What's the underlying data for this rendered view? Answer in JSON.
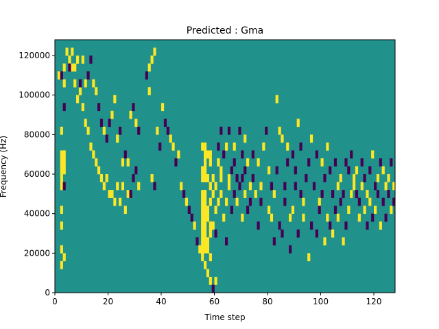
{
  "chart_data": {
    "type": "heatmap",
    "title": "Predicted : Gma",
    "xlabel": "Time step",
    "ylabel": "Frequency (Hz)",
    "xlim": [
      0,
      128
    ],
    "ylim": [
      0,
      128000
    ],
    "x_ticks": [
      0,
      20,
      40,
      60,
      80,
      100,
      120
    ],
    "y_ticks": [
      0,
      20000,
      40000,
      60000,
      80000,
      100000,
      120000
    ],
    "x_tick_labels": [
      "0",
      "20",
      "40",
      "60",
      "80",
      "100",
      "120"
    ],
    "y_tick_labels": [
      "0",
      "20000",
      "40000",
      "60000",
      "80000",
      "100000",
      "120000"
    ],
    "grid": false,
    "rows": 32,
    "cols": 128,
    "row_height_hz": 4000,
    "values_legend": {
      "low": -1,
      "mid": 0,
      "high": 1
    },
    "colors": {
      "low": "#440154",
      "mid": "#21918c",
      "high": "#fde725"
    },
    "cells": [
      [
        2,
        3,
        1
      ],
      [
        2,
        5,
        1
      ],
      [
        2,
        8,
        1
      ],
      [
        2,
        10,
        1
      ],
      [
        2,
        13,
        1
      ],
      [
        2,
        14,
        1
      ],
      [
        3,
        4,
        1
      ],
      [
        3,
        13,
        -1
      ],
      [
        3,
        15,
        1
      ],
      [
        2,
        15,
        1
      ],
      [
        3,
        16,
        1
      ],
      [
        2,
        16,
        1
      ],
      [
        2,
        17,
        1
      ],
      [
        3,
        17,
        1
      ],
      [
        2,
        20,
        1
      ],
      [
        3,
        23,
        -1
      ],
      [
        3,
        26,
        1
      ],
      [
        1,
        27,
        1
      ],
      [
        2,
        27,
        -1
      ],
      [
        3,
        28,
        1
      ],
      [
        4,
        30,
        1
      ],
      [
        5,
        29,
        1
      ],
      [
        6,
        28,
        1
      ],
      [
        7,
        26,
        1
      ],
      [
        8,
        24,
        1
      ],
      [
        9,
        25,
        1
      ],
      [
        10,
        23,
        1
      ],
      [
        11,
        21,
        1
      ],
      [
        12,
        20,
        1
      ],
      [
        13,
        18,
        1
      ],
      [
        14,
        17,
        1
      ],
      [
        15,
        16,
        1
      ],
      [
        16,
        15,
        1
      ],
      [
        17,
        14,
        1
      ],
      [
        18,
        13,
        1
      ],
      [
        19,
        14,
        1
      ],
      [
        20,
        12,
        1
      ],
      [
        21,
        12,
        1
      ],
      [
        22,
        11,
        1
      ],
      [
        23,
        13,
        1
      ],
      [
        24,
        11,
        1
      ],
      [
        25,
        13,
        1
      ],
      [
        26,
        10,
        1
      ],
      [
        27,
        12,
        1
      ],
      [
        28,
        12,
        -1
      ],
      [
        29,
        14,
        -1
      ],
      [
        30,
        15,
        -1
      ],
      [
        31,
        13,
        1
      ],
      [
        5,
        28,
        -1
      ],
      [
        6,
        30,
        1
      ],
      [
        7,
        28,
        1
      ],
      [
        8,
        29,
        1
      ],
      [
        9,
        26,
        -1
      ],
      [
        10,
        29,
        1
      ],
      [
        11,
        26,
        1
      ],
      [
        12,
        27,
        -1
      ],
      [
        13,
        29,
        -1
      ],
      [
        14,
        26,
        1
      ],
      [
        15,
        25,
        1
      ],
      [
        16,
        23,
        -1
      ],
      [
        17,
        21,
        -1
      ],
      [
        18,
        20,
        1
      ],
      [
        19,
        19,
        -1
      ],
      [
        20,
        21,
        -1
      ],
      [
        21,
        22,
        1
      ],
      [
        22,
        24,
        1
      ],
      [
        23,
        19,
        1
      ],
      [
        24,
        20,
        -1
      ],
      [
        25,
        16,
        1
      ],
      [
        26,
        17,
        -1
      ],
      [
        27,
        16,
        1
      ],
      [
        28,
        22,
        1
      ],
      [
        29,
        23,
        -1
      ],
      [
        30,
        21,
        1
      ],
      [
        31,
        20,
        -1
      ],
      [
        37,
        13,
        -1
      ],
      [
        36,
        14,
        1
      ],
      [
        39,
        18,
        -1
      ],
      [
        38,
        20,
        1
      ],
      [
        35,
        25,
        1
      ],
      [
        34,
        27,
        -1
      ],
      [
        35,
        28,
        1
      ],
      [
        36,
        29,
        1
      ],
      [
        37,
        30,
        1
      ],
      [
        40,
        23,
        1
      ],
      [
        41,
        21,
        -1
      ],
      [
        42,
        20,
        -1
      ],
      [
        43,
        19,
        1
      ],
      [
        44,
        18,
        1
      ],
      [
        45,
        16,
        -1
      ],
      [
        46,
        17,
        1
      ],
      [
        47,
        13,
        1
      ],
      [
        48,
        12,
        -1
      ],
      [
        49,
        11,
        1
      ],
      [
        50,
        10,
        -1
      ],
      [
        51,
        9,
        -1
      ],
      [
        52,
        8,
        1
      ],
      [
        53,
        6,
        -1
      ],
      [
        54,
        5,
        1
      ],
      [
        55,
        4,
        1
      ],
      [
        56,
        3,
        1
      ],
      [
        57,
        2,
        1
      ],
      [
        58,
        1,
        1
      ],
      [
        59,
        0,
        -1
      ],
      [
        60,
        1,
        1
      ],
      [
        55,
        5,
        1
      ],
      [
        55,
        6,
        1
      ],
      [
        56,
        5,
        1
      ],
      [
        56,
        6,
        1
      ],
      [
        57,
        5,
        1
      ],
      [
        57,
        6,
        1
      ],
      [
        55,
        7,
        1
      ],
      [
        55,
        8,
        1
      ],
      [
        56,
        7,
        1
      ],
      [
        56,
        8,
        1
      ],
      [
        55,
        9,
        1
      ],
      [
        55,
        10,
        1
      ],
      [
        56,
        9,
        1
      ],
      [
        56,
        10,
        1
      ],
      [
        57,
        9,
        1
      ],
      [
        57,
        10,
        1
      ],
      [
        55,
        11,
        1
      ],
      [
        55,
        12,
        1
      ],
      [
        56,
        11,
        1
      ],
      [
        56,
        12,
        1
      ],
      [
        55,
        14,
        1
      ],
      [
        55,
        15,
        1
      ],
      [
        56,
        14,
        1
      ],
      [
        56,
        15,
        1
      ],
      [
        57,
        14,
        1
      ],
      [
        56,
        16,
        1
      ],
      [
        56,
        17,
        1
      ],
      [
        57,
        17,
        1
      ],
      [
        55,
        18,
        1
      ],
      [
        56,
        18,
        1
      ],
      [
        58,
        4,
        1
      ],
      [
        58,
        7,
        1
      ],
      [
        58,
        8,
        1
      ],
      [
        58,
        11,
        1
      ],
      [
        58,
        13,
        1
      ],
      [
        58,
        16,
        1
      ],
      [
        58,
        17,
        1
      ],
      [
        59,
        8,
        1
      ],
      [
        59,
        12,
        1
      ],
      [
        59,
        14,
        1
      ],
      [
        60,
        7,
        -1
      ],
      [
        60,
        10,
        1
      ],
      [
        60,
        13,
        1
      ],
      [
        61,
        11,
        1
      ],
      [
        61,
        16,
        1
      ],
      [
        61,
        18,
        -1
      ],
      [
        62,
        12,
        1
      ],
      [
        62,
        14,
        1
      ],
      [
        62,
        15,
        1
      ],
      [
        62,
        20,
        -1
      ],
      [
        63,
        9,
        1
      ],
      [
        63,
        17,
        -1
      ],
      [
        64,
        11,
        1
      ],
      [
        64,
        18,
        1
      ],
      [
        64,
        6,
        -1
      ],
      [
        65,
        13,
        1
      ],
      [
        65,
        14,
        1
      ],
      [
        65,
        20,
        -1
      ],
      [
        66,
        10,
        -1
      ],
      [
        66,
        15,
        -1
      ],
      [
        67,
        12,
        -1
      ],
      [
        67,
        16,
        -1
      ],
      [
        67,
        18,
        1
      ],
      [
        68,
        11,
        1
      ],
      [
        68,
        14,
        -1
      ],
      [
        69,
        13,
        -1
      ],
      [
        69,
        20,
        -1
      ],
      [
        70,
        9,
        1
      ],
      [
        70,
        14,
        -1
      ],
      [
        70,
        17,
        -1
      ],
      [
        71,
        12,
        1
      ],
      [
        71,
        15,
        -1
      ],
      [
        71,
        19,
        1
      ],
      [
        72,
        10,
        -1
      ],
      [
        72,
        16,
        1
      ],
      [
        73,
        11,
        -1
      ],
      [
        73,
        13,
        1
      ],
      [
        74,
        17,
        -1
      ],
      [
        74,
        14,
        -1
      ],
      [
        75,
        12,
        1
      ],
      [
        76,
        8,
        -1
      ],
      [
        76,
        16,
        1
      ],
      [
        77,
        11,
        -1
      ],
      [
        77,
        13,
        1
      ],
      [
        78,
        18,
        1
      ],
      [
        79,
        20,
        -1
      ],
      [
        80,
        10,
        1
      ],
      [
        80,
        15,
        1
      ],
      [
        81,
        9,
        1
      ],
      [
        81,
        13,
        -1
      ],
      [
        82,
        6,
        -1
      ],
      [
        82,
        12,
        1
      ],
      [
        83,
        15,
        -1
      ],
      [
        83,
        24,
        1
      ],
      [
        84,
        8,
        -1
      ],
      [
        84,
        20,
        1
      ],
      [
        85,
        7,
        -1
      ],
      [
        85,
        19,
        1
      ],
      [
        86,
        13,
        -1
      ],
      [
        86,
        11,
        -1
      ],
      [
        87,
        16,
        -1
      ],
      [
        87,
        18,
        1
      ],
      [
        88,
        9,
        1
      ],
      [
        88,
        5,
        -1
      ],
      [
        89,
        17,
        -1
      ],
      [
        89,
        10,
        1
      ],
      [
        90,
        13,
        -1
      ],
      [
        90,
        15,
        -1
      ],
      [
        91,
        7,
        -1
      ],
      [
        91,
        21,
        1
      ],
      [
        92,
        12,
        -1
      ],
      [
        92,
        18,
        -1
      ],
      [
        93,
        9,
        1
      ],
      [
        93,
        11,
        1
      ],
      [
        94,
        14,
        -1
      ],
      [
        95,
        4,
        1
      ],
      [
        95,
        16,
        -1
      ],
      [
        96,
        8,
        -1
      ],
      [
        96,
        19,
        1
      ],
      [
        97,
        13,
        -1
      ],
      [
        98,
        7,
        -1
      ],
      [
        98,
        17,
        -1
      ],
      [
        99,
        11,
        1
      ],
      [
        99,
        10,
        -1
      ],
      [
        100,
        12,
        -1
      ],
      [
        100,
        16,
        1
      ],
      [
        101,
        6,
        1
      ],
      [
        101,
        14,
        -1
      ],
      [
        102,
        9,
        1
      ],
      [
        102,
        18,
        1
      ],
      [
        103,
        8,
        -1
      ],
      [
        103,
        15,
        -1
      ],
      [
        104,
        7,
        1
      ],
      [
        104,
        12,
        -1
      ],
      [
        105,
        10,
        -1
      ],
      [
        105,
        16,
        -1
      ],
      [
        106,
        9,
        1
      ],
      [
        106,
        13,
        1
      ],
      [
        107,
        11,
        -1
      ],
      [
        107,
        14,
        1
      ],
      [
        108,
        6,
        1
      ],
      [
        108,
        12,
        -1
      ],
      [
        109,
        8,
        -1
      ],
      [
        109,
        16,
        -1
      ],
      [
        110,
        10,
        1
      ],
      [
        110,
        15,
        -1
      ],
      [
        111,
        12,
        1
      ],
      [
        111,
        17,
        -1
      ],
      [
        112,
        13,
        1
      ],
      [
        112,
        14,
        1
      ],
      [
        113,
        12,
        -1
      ],
      [
        113,
        15,
        1
      ],
      [
        114,
        9,
        1
      ],
      [
        114,
        11,
        -1
      ],
      [
        115,
        16,
        -1
      ],
      [
        115,
        13,
        1
      ],
      [
        116,
        10,
        1
      ],
      [
        116,
        14,
        -1
      ],
      [
        117,
        8,
        -1
      ],
      [
        117,
        12,
        1
      ],
      [
        118,
        15,
        -1
      ],
      [
        118,
        11,
        1
      ],
      [
        119,
        9,
        -1
      ],
      [
        119,
        17,
        1
      ],
      [
        120,
        13,
        -1
      ],
      [
        120,
        10,
        1
      ],
      [
        121,
        14,
        1
      ],
      [
        121,
        12,
        -1
      ],
      [
        122,
        8,
        1
      ],
      [
        122,
        16,
        -1
      ],
      [
        123,
        11,
        -1
      ],
      [
        123,
        15,
        1
      ],
      [
        124,
        13,
        1
      ],
      [
        124,
        9,
        -1
      ],
      [
        125,
        12,
        -1
      ],
      [
        125,
        14,
        1
      ],
      [
        126,
        10,
        1
      ],
      [
        126,
        16,
        -1
      ],
      [
        127,
        11,
        -1
      ],
      [
        127,
        13,
        1
      ]
    ]
  }
}
